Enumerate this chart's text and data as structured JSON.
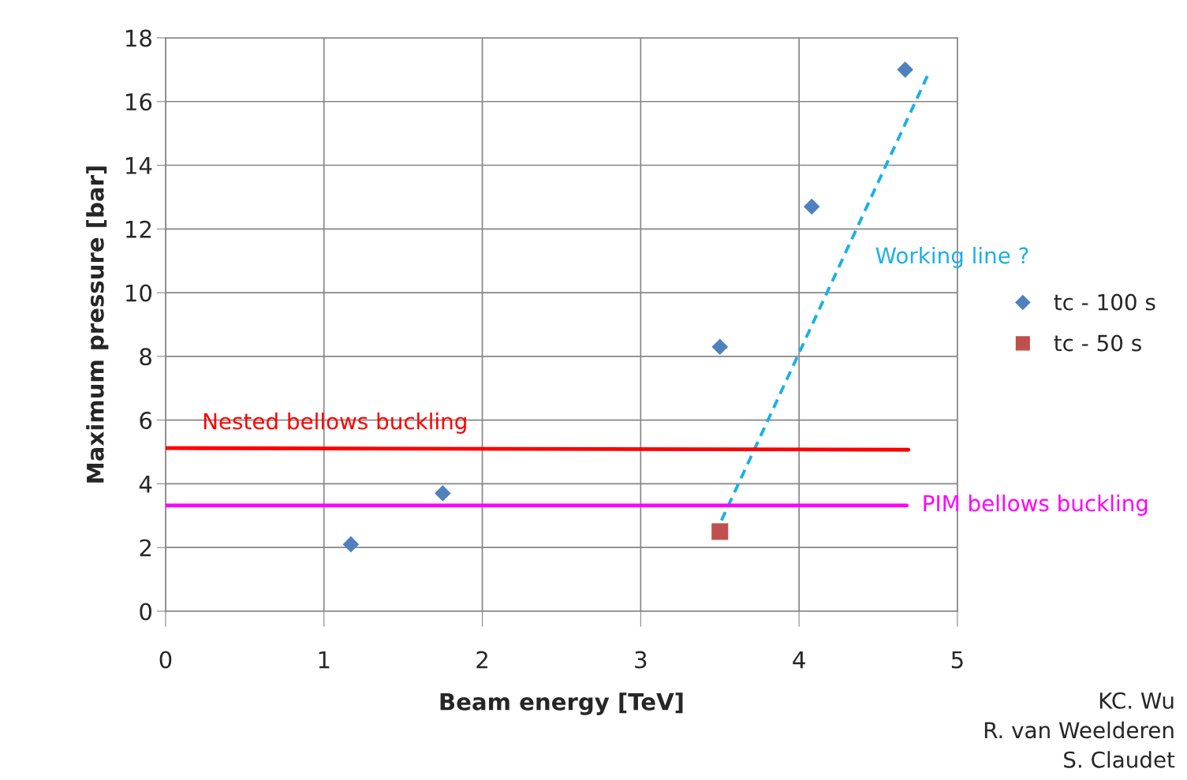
{
  "chart_data": {
    "type": "scatter",
    "xlabel": "Beam energy [TeV]",
    "ylabel": "Maximum pressure [bar]",
    "xlim": [
      0,
      5
    ],
    "xticks": [
      0,
      1,
      2,
      3,
      4,
      5
    ],
    "ylim": [
      0,
      18
    ],
    "yticks": [
      0,
      2,
      4,
      6,
      8,
      10,
      12,
      14,
      16,
      18
    ],
    "grid": true,
    "legend": "right",
    "series": [
      {
        "name": "tc - 100 s",
        "marker": "diamond",
        "color": "#4f81bd",
        "x": [
          1.17,
          1.75,
          3.5,
          4.08,
          4.67
        ],
        "values": [
          2.1,
          3.7,
          8.3,
          12.7,
          17.0
        ]
      },
      {
        "name": "tc - 50 s",
        "marker": "square",
        "color": "#c0504d",
        "x": [
          3.5
        ],
        "values": [
          2.5
        ]
      },
      {
        "type": "line",
        "line_style": "dashed",
        "color": "#1ab0e8",
        "x": [
          3.51,
          4.81
        ],
        "values": [
          2.85,
          16.8
        ]
      },
      {
        "type": "line",
        "line_style": "solid",
        "color": "#ff0000",
        "x": [
          0,
          4.69
        ],
        "values": [
          5.12,
          5.07
        ]
      },
      {
        "type": "line",
        "line_style": "solid",
        "color": "#ff00ff",
        "x": [
          0,
          4.68
        ],
        "values": [
          3.32,
          3.32
        ]
      }
    ],
    "annotations": [
      "Working line ?",
      "Nested bellows buckling",
      "PIM bellows buckling",
      "KC. Wu\nR. van Weelderen\nS. Claudet"
    ]
  }
}
